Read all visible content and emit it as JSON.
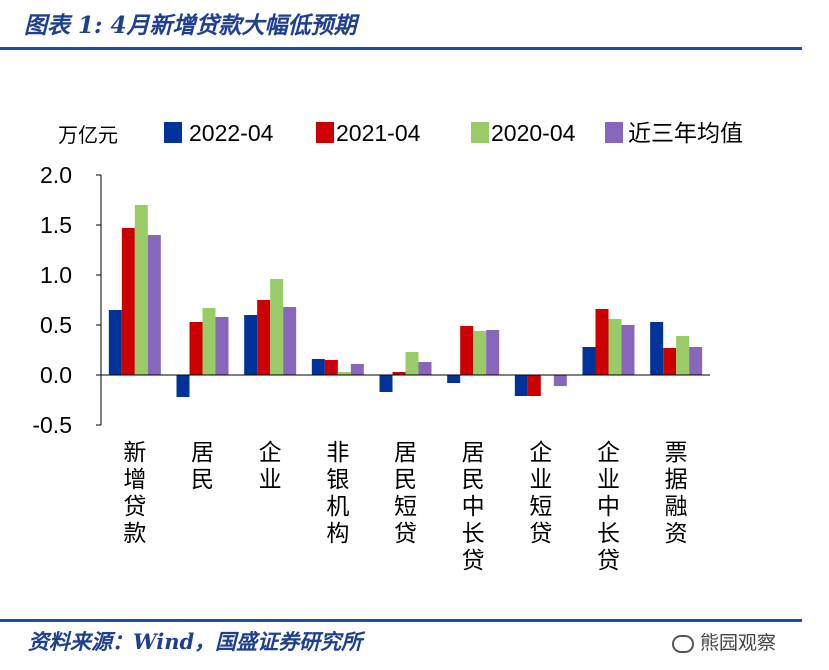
{
  "header": {
    "title": "图表 1:  4月新增贷款大幅低预期"
  },
  "footer": {
    "source": "资料来源：Wind，国盛证券研究所",
    "watermark": "熊园观察"
  },
  "chart_data": {
    "type": "bar",
    "unit_label": "万亿元",
    "categories": [
      "新增贷款",
      "居民",
      "企业",
      "非银机构",
      "居民短贷",
      "居民中长贷",
      "企业短贷",
      "企业中长贷",
      "票据融资"
    ],
    "series": [
      {
        "name": "2022-04",
        "color": "#003399",
        "values": [
          0.65,
          -0.22,
          0.6,
          0.16,
          -0.17,
          -0.08,
          -0.21,
          0.28,
          0.53
        ]
      },
      {
        "name": "2021-04",
        "color": "#cc0000",
        "values": [
          1.47,
          0.53,
          0.75,
          0.15,
          0.03,
          0.49,
          -0.21,
          0.66,
          0.27
        ]
      },
      {
        "name": "2020-04",
        "color": "#99cc66",
        "values": [
          1.7,
          0.67,
          0.96,
          0.03,
          0.23,
          0.44,
          0.0,
          0.56,
          0.39
        ]
      },
      {
        "name": "近三年均值",
        "color": "#8866bb",
        "values": [
          1.4,
          0.58,
          0.68,
          0.11,
          0.13,
          0.45,
          -0.11,
          0.5,
          0.28
        ]
      }
    ],
    "ylim": [
      -0.5,
      2.0
    ],
    "yticks": [
      -0.5,
      0.0,
      0.5,
      1.0,
      1.5,
      2.0
    ],
    "ytick_labels": [
      "-0.5",
      "0.0",
      "0.5",
      "1.0",
      "1.5",
      "2.0"
    ],
    "legend_position": "top",
    "grid": false
  }
}
